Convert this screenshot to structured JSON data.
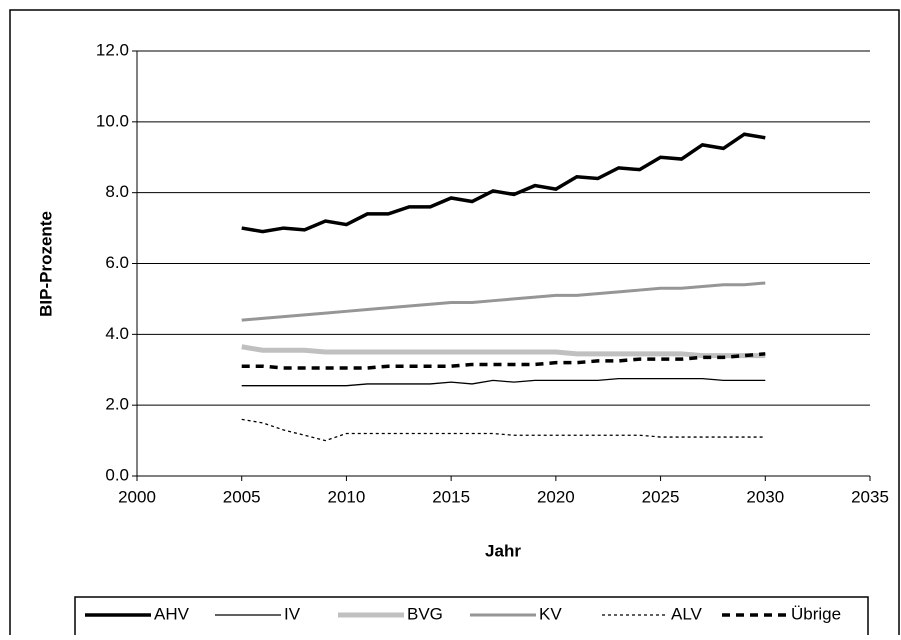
{
  "chart_data": {
    "type": "line",
    "x_label": "Jahr",
    "y_label": "BIP-Prozente",
    "x": [
      2005,
      2006,
      2007,
      2008,
      2009,
      2010,
      2011,
      2012,
      2013,
      2014,
      2015,
      2016,
      2017,
      2018,
      2019,
      2020,
      2021,
      2022,
      2023,
      2024,
      2025,
      2026,
      2027,
      2028,
      2029,
      2030
    ],
    "series": [
      {
        "name": "AHV",
        "color": "#000000",
        "line_width": 3.5,
        "dash": "none",
        "values": [
          7.0,
          6.9,
          7.0,
          6.95,
          7.2,
          7.1,
          7.4,
          7.4,
          7.6,
          7.6,
          7.85,
          7.75,
          8.05,
          7.95,
          8.2,
          8.1,
          8.45,
          8.4,
          8.7,
          8.65,
          9.0,
          8.95,
          9.35,
          9.25,
          9.65,
          9.55
        ]
      },
      {
        "name": "IV",
        "color": "#000000",
        "line_width": 1.3,
        "dash": "none",
        "values": [
          2.55,
          2.55,
          2.55,
          2.55,
          2.55,
          2.55,
          2.6,
          2.6,
          2.6,
          2.6,
          2.65,
          2.6,
          2.7,
          2.65,
          2.7,
          2.7,
          2.7,
          2.7,
          2.75,
          2.75,
          2.75,
          2.75,
          2.75,
          2.7,
          2.7,
          2.7
        ]
      },
      {
        "name": "BVG",
        "color": "#c0c0c0",
        "line_width": 5,
        "dash": "none",
        "values": [
          3.65,
          3.55,
          3.55,
          3.55,
          3.5,
          3.5,
          3.5,
          3.5,
          3.5,
          3.5,
          3.5,
          3.5,
          3.5,
          3.5,
          3.5,
          3.5,
          3.45,
          3.45,
          3.45,
          3.45,
          3.45,
          3.45,
          3.4,
          3.4,
          3.4,
          3.4
        ]
      },
      {
        "name": "KV",
        "color": "#969696",
        "line_width": 3,
        "dash": "none",
        "values": [
          4.4,
          4.45,
          4.5,
          4.55,
          4.6,
          4.65,
          4.7,
          4.75,
          4.8,
          4.85,
          4.9,
          4.9,
          4.95,
          5.0,
          5.05,
          5.1,
          5.1,
          5.15,
          5.2,
          5.25,
          5.3,
          5.3,
          5.35,
          5.4,
          5.4,
          5.45
        ]
      },
      {
        "name": "ALV",
        "color": "#000000",
        "line_width": 1.3,
        "dash": "3 3",
        "values": [
          1.6,
          1.5,
          1.3,
          1.15,
          1.0,
          1.2,
          1.2,
          1.2,
          1.2,
          1.2,
          1.2,
          1.2,
          1.2,
          1.15,
          1.15,
          1.15,
          1.15,
          1.15,
          1.15,
          1.15,
          1.1,
          1.1,
          1.1,
          1.1,
          1.1,
          1.1
        ]
      },
      {
        "name": "Übrige",
        "color": "#000000",
        "line_width": 3.5,
        "dash": "8 6",
        "values": [
          3.1,
          3.1,
          3.05,
          3.05,
          3.05,
          3.05,
          3.05,
          3.1,
          3.1,
          3.1,
          3.1,
          3.15,
          3.15,
          3.15,
          3.15,
          3.2,
          3.2,
          3.25,
          3.25,
          3.3,
          3.3,
          3.3,
          3.35,
          3.35,
          3.4,
          3.45
        ]
      }
    ],
    "xlim": [
      2000,
      2035
    ],
    "xticks": [
      2000,
      2005,
      2010,
      2015,
      2020,
      2025,
      2030,
      2035
    ],
    "ylim": [
      0,
      12
    ],
    "yticks": [
      {
        "value": 0,
        "label": "0.0"
      },
      {
        "value": 2,
        "label": "2.0"
      },
      {
        "value": 4,
        "label": "4.0"
      },
      {
        "value": 6,
        "label": "6.0"
      },
      {
        "value": 8,
        "label": "8.0"
      },
      {
        "value": 10,
        "label": "10.0"
      },
      {
        "value": 12,
        "label": "12.0"
      }
    ],
    "grid": true,
    "legend": "bottom"
  }
}
